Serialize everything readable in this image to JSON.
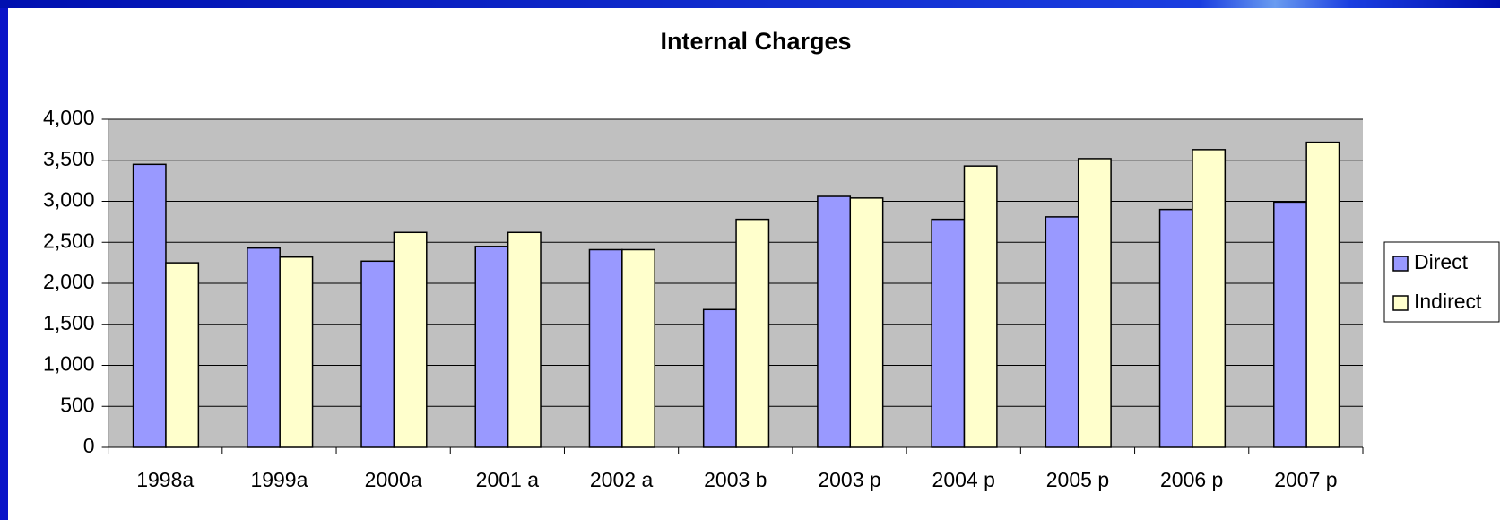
{
  "chart_data": {
    "type": "bar",
    "title": "Internal Charges",
    "categories": [
      "1998a",
      "1999a",
      "2000a",
      "2001 a",
      "2002 a",
      "2003 b",
      "2003 p",
      "2004 p",
      "2005 p",
      "2006 p",
      "2007 p"
    ],
    "series": [
      {
        "name": "Direct",
        "color": "#9999ff",
        "values": [
          3450,
          2430,
          2270,
          2450,
          2410,
          1680,
          3060,
          2780,
          2810,
          2900,
          2990
        ]
      },
      {
        "name": "Indirect",
        "color": "#ffffcc",
        "values": [
          2250,
          2320,
          2620,
          2620,
          2410,
          2780,
          3040,
          3430,
          3520,
          3630,
          3720
        ]
      }
    ],
    "ylim": [
      0,
      4000
    ],
    "yticks": [
      0,
      500,
      {
        "value": 1000,
        "label": "1,000"
      },
      {
        "value": 1500,
        "label": "1,500"
      },
      {
        "value": 2000,
        "label": "2,000"
      },
      {
        "value": 2500,
        "label": "2,500"
      },
      {
        "value": 3000,
        "label": "3,000"
      },
      {
        "value": 3500,
        "label": "3,500"
      },
      {
        "value": 4000,
        "label": "4,000"
      }
    ],
    "grid": true,
    "legend": "right"
  }
}
